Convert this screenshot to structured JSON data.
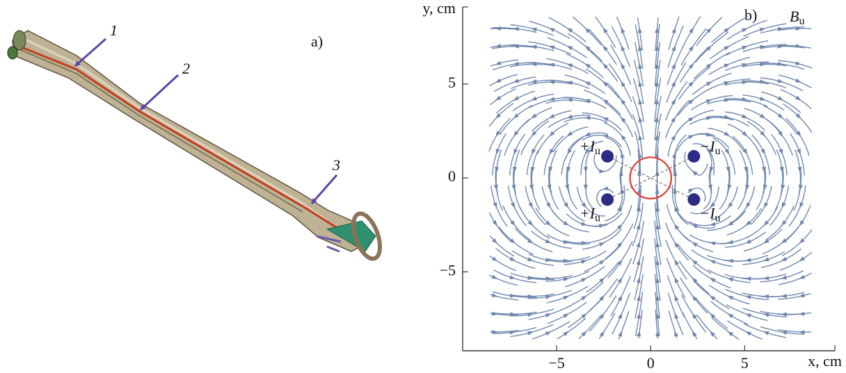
{
  "panel_a": {
    "label": "a)",
    "callouts": [
      "1",
      "2",
      "3"
    ]
  },
  "chart_data": {
    "type": "streamplot",
    "panel_label": "b)",
    "field_label": {
      "symbol": "B",
      "subscript": "u"
    },
    "x_label": "x, cm",
    "y_label": "y, cm",
    "xlim": [
      -10,
      9.8
    ],
    "ylim": [
      -9.2,
      9.1
    ],
    "xticks": [
      {
        "value": -5,
        "label": "−5"
      },
      0,
      5
    ],
    "yticks": [
      {
        "value": -5,
        "label": "−5"
      },
      0,
      5
    ],
    "streamline_color": "#6f87ad",
    "currents": [
      {
        "x": -2.3,
        "y": 1.15,
        "label": {
          "sign": "+I",
          "subscript": "u"
        }
      },
      {
        "x": 2.3,
        "y": 1.15,
        "label": {
          "sign": "−I",
          "subscript": "u"
        }
      },
      {
        "x": -2.3,
        "y": -1.15,
        "label": {
          "sign": "+I",
          "subscript": "u"
        }
      },
      {
        "x": 2.3,
        "y": -1.15,
        "label": {
          "sign": "−I",
          "subscript": "u"
        }
      }
    ],
    "current_color": "#2c2c86",
    "circle": {
      "x": 0,
      "y": 0,
      "radius": 1.1,
      "color": "#e23a2e"
    }
  }
}
